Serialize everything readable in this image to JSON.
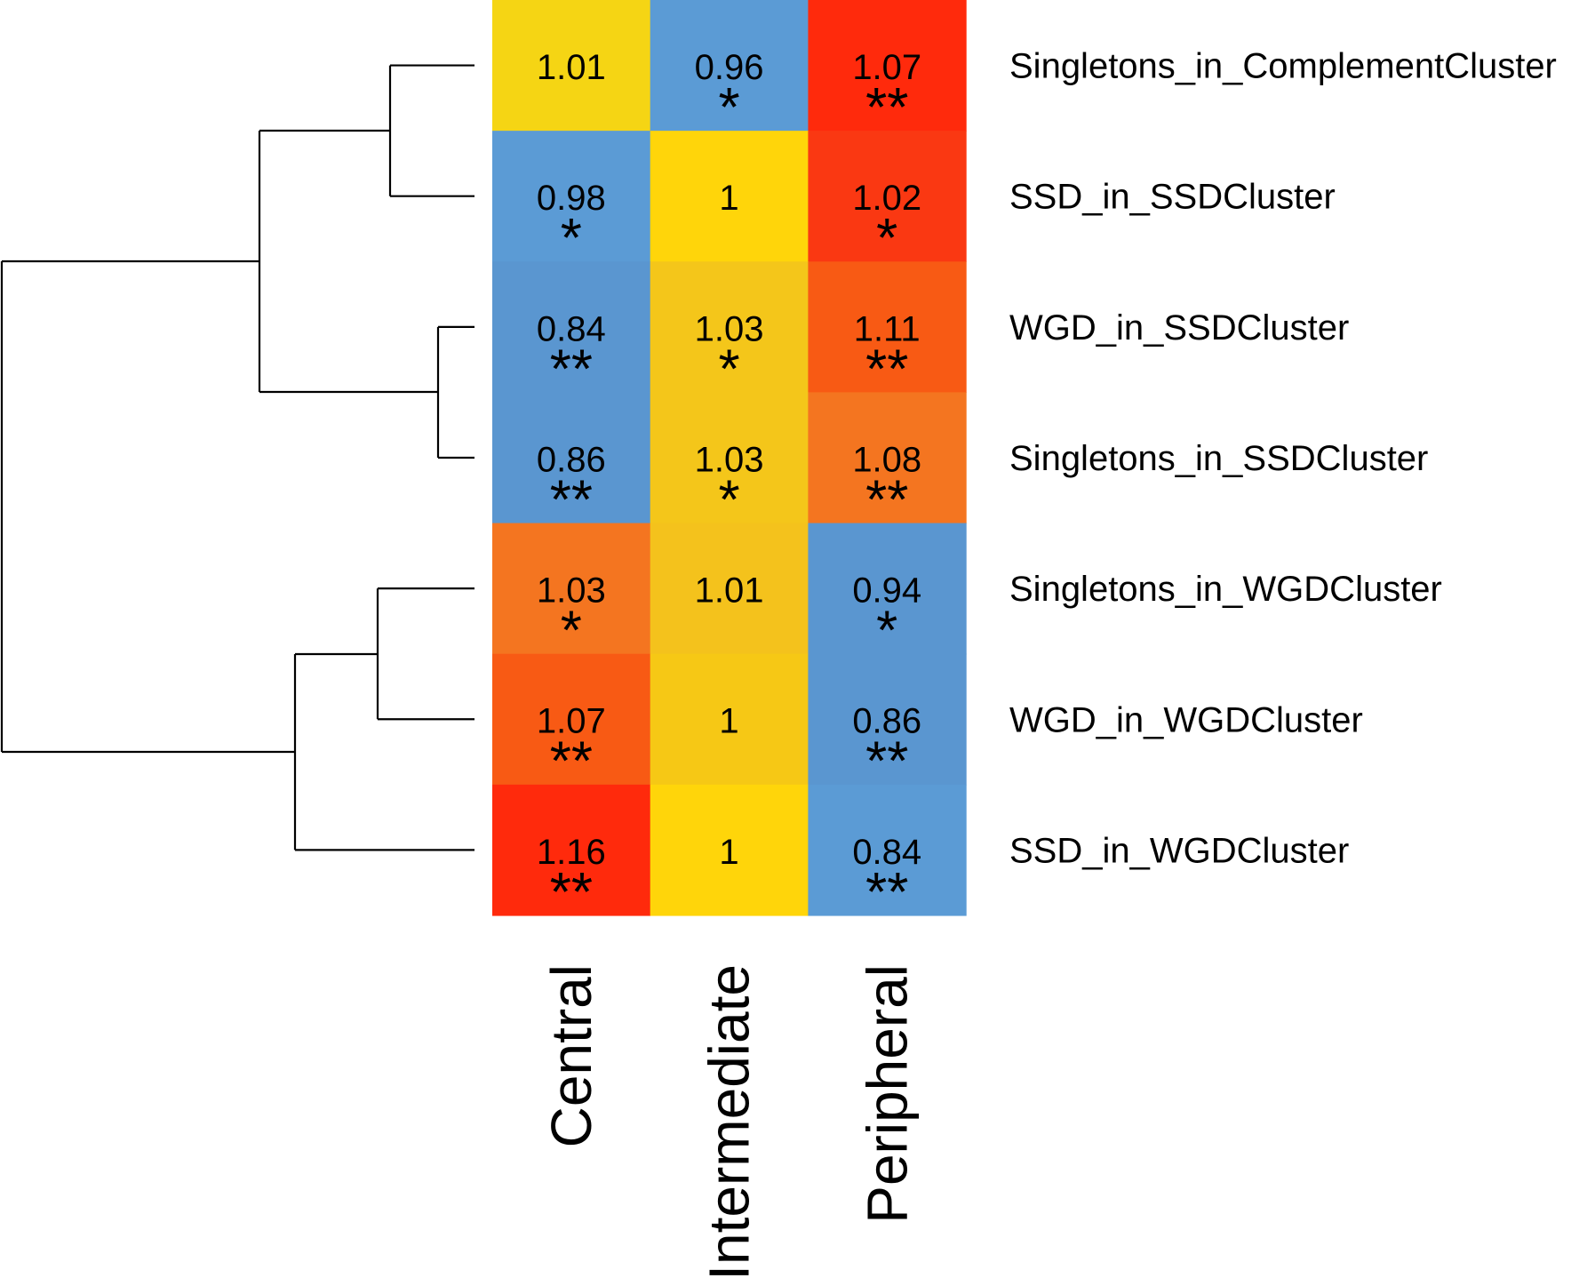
{
  "chart_data": {
    "type": "heatmap",
    "columns": [
      "Central",
      "Intermediate",
      "Peripheral"
    ],
    "rows": [
      "Singletons_in_ComplementCluster",
      "SSD_in_SSDCluster",
      "WGD_in_SSDCluster",
      "Singletons_in_SSDCluster",
      "Singletons_in_WGDCluster",
      "WGD_in_WGDCluster",
      "SSD_in_WGDCluster"
    ],
    "values": [
      [
        1.01,
        0.96,
        1.07
      ],
      [
        0.98,
        1,
        1.02
      ],
      [
        0.84,
        1.03,
        1.11
      ],
      [
        0.86,
        1.03,
        1.08
      ],
      [
        1.03,
        1.01,
        0.94
      ],
      [
        1.07,
        1,
        0.86
      ],
      [
        1.16,
        1,
        0.84
      ]
    ],
    "labels": [
      [
        "1.01",
        "0.96",
        "1.07"
      ],
      [
        "0.98",
        "1",
        "1.02"
      ],
      [
        "0.84",
        "1.03",
        "1.11"
      ],
      [
        "0.86",
        "1.03",
        "1.08"
      ],
      [
        "1.03",
        "1.01",
        "0.94"
      ],
      [
        "1.07",
        "1",
        "0.86"
      ],
      [
        "1.16",
        "1",
        "0.84"
      ]
    ],
    "significance": [
      [
        "",
        "*",
        "**"
      ],
      [
        "*",
        "",
        "*"
      ],
      [
        "**",
        "*",
        "**"
      ],
      [
        "**",
        "*",
        "**"
      ],
      [
        "*",
        "",
        "*"
      ],
      [
        "**",
        "",
        "**"
      ],
      [
        "**",
        "",
        "**"
      ]
    ],
    "cell_colors": [
      [
        "#f5d514",
        "#5b9bd5",
        "#ff2a0c"
      ],
      [
        "#5b9bd5",
        "#ffd50a",
        "#fa3812"
      ],
      [
        "#5a96d0",
        "#f4c61a",
        "#f85a14"
      ],
      [
        "#5a96d0",
        "#f4c61a",
        "#f47520"
      ],
      [
        "#f47520",
        "#f4c21c",
        "#5a96d0"
      ],
      [
        "#f85a14",
        "#f6c815",
        "#5a96d0"
      ],
      [
        "#ff2a0c",
        "#ffd50a",
        "#5b9bd5"
      ]
    ],
    "dendrogram": "rows",
    "xlabel": "",
    "ylabel": "",
    "title": ""
  }
}
